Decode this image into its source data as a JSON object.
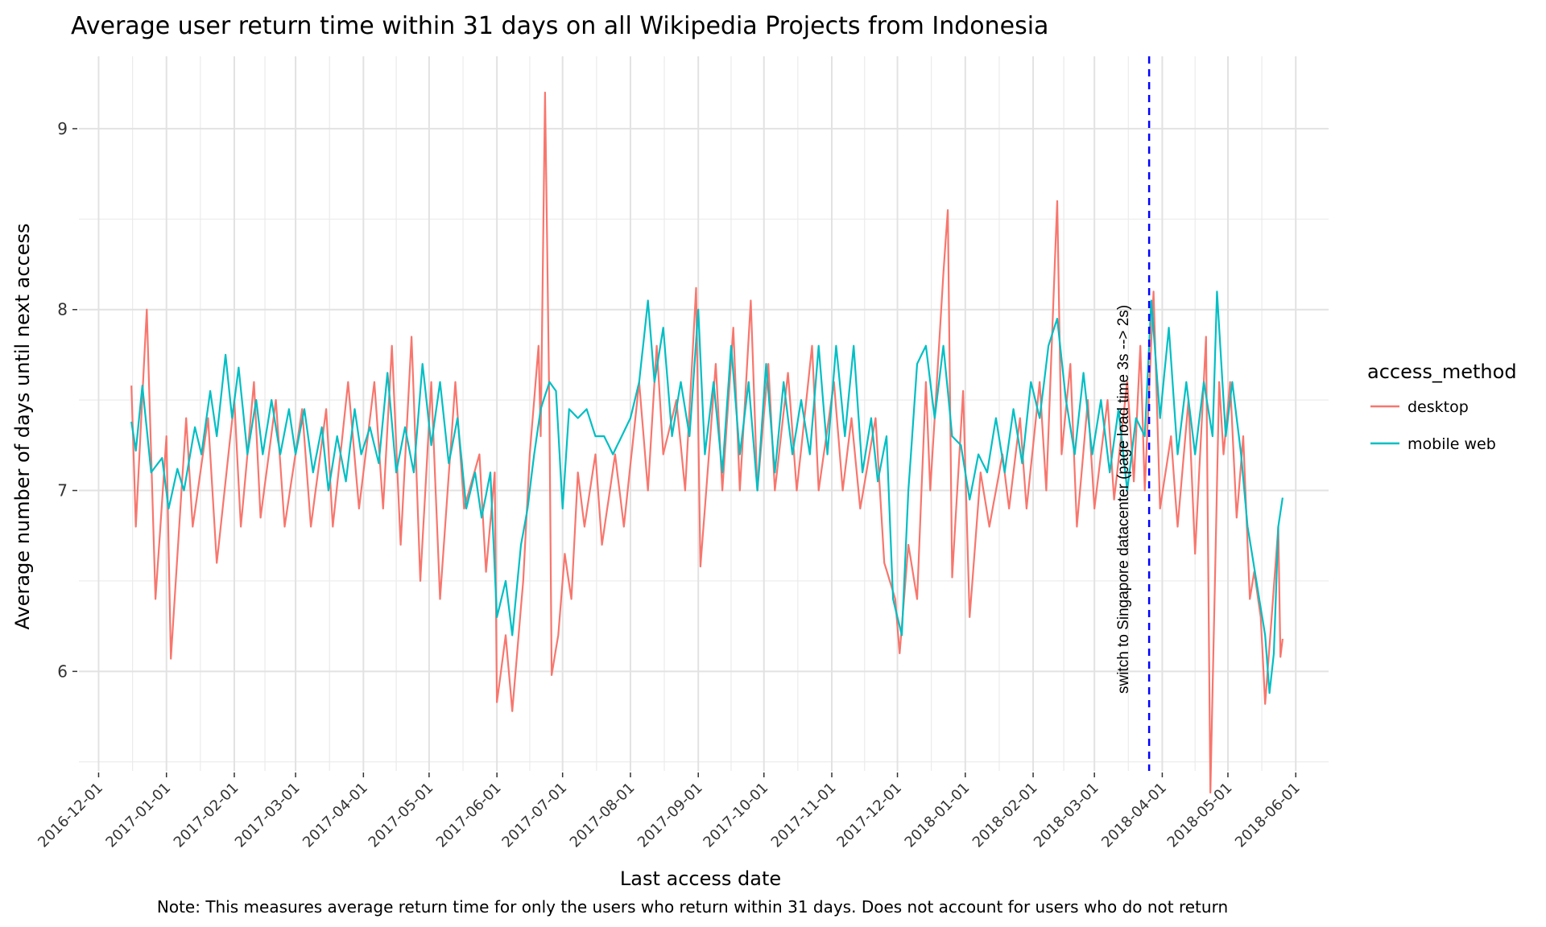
{
  "chart_data": {
    "type": "line",
    "title": "Average user return time within 31 days on all Wikipedia Projects from Indonesia",
    "xlabel": "Last access date",
    "ylabel": "Average number of days until next access",
    "caption": "Note: This measures average return time for only the users who return within 31 days. Does not account for users who do not return",
    "x_range": [
      "2016-11-22",
      "2018-06-16"
    ],
    "x_data_range": [
      "2016-12-16",
      "2018-05-26"
    ],
    "ylim": [
      5.45,
      9.4
    ],
    "y_ticks": [
      6,
      7,
      8,
      9
    ],
    "x_ticks": [
      "2016-12-01",
      "2017-01-01",
      "2017-02-01",
      "2017-03-01",
      "2017-04-01",
      "2017-05-01",
      "2017-06-01",
      "2017-07-01",
      "2017-08-01",
      "2017-09-01",
      "2017-10-01",
      "2017-11-01",
      "2017-12-01",
      "2018-01-01",
      "2018-02-01",
      "2018-03-01",
      "2018-04-01",
      "2018-05-01",
      "2018-06-01"
    ],
    "grid": true,
    "legend": {
      "title": "access_method",
      "position": "right"
    },
    "vline": {
      "x": "2018-03-26",
      "color": "#0000ff",
      "style": "dashed",
      "label": "switch to Singapore datacenter (page load time 3s --> 2s)"
    },
    "series": [
      {
        "name": "desktop",
        "color": "#f8766d",
        "points": [
          [
            "2016-12-16",
            7.58
          ],
          [
            "2016-12-18",
            6.8
          ],
          [
            "2016-12-23",
            8.0
          ],
          [
            "2016-12-27",
            6.4
          ],
          [
            "2017-01-01",
            7.3
          ],
          [
            "2017-01-03",
            6.07
          ],
          [
            "2017-01-10",
            7.4
          ],
          [
            "2017-01-13",
            6.8
          ],
          [
            "2017-01-20",
            7.4
          ],
          [
            "2017-01-24",
            6.6
          ],
          [
            "2017-02-01",
            7.5
          ],
          [
            "2017-02-04",
            6.8
          ],
          [
            "2017-02-10",
            7.6
          ],
          [
            "2017-02-13",
            6.85
          ],
          [
            "2017-02-20",
            7.5
          ],
          [
            "2017-02-24",
            6.8
          ],
          [
            "2017-03-04",
            7.45
          ],
          [
            "2017-03-08",
            6.8
          ],
          [
            "2017-03-15",
            7.45
          ],
          [
            "2017-03-18",
            6.8
          ],
          [
            "2017-03-25",
            7.6
          ],
          [
            "2017-03-30",
            6.9
          ],
          [
            "2017-04-06",
            7.6
          ],
          [
            "2017-04-10",
            6.9
          ],
          [
            "2017-04-14",
            7.8
          ],
          [
            "2017-04-18",
            6.7
          ],
          [
            "2017-04-23",
            7.85
          ],
          [
            "2017-04-27",
            6.5
          ],
          [
            "2017-05-02",
            7.6
          ],
          [
            "2017-05-06",
            6.4
          ],
          [
            "2017-05-13",
            7.6
          ],
          [
            "2017-05-17",
            6.9
          ],
          [
            "2017-05-24",
            7.2
          ],
          [
            "2017-05-27",
            6.55
          ],
          [
            "2017-05-31",
            7.1
          ],
          [
            "2017-06-01",
            5.83
          ],
          [
            "2017-06-05",
            6.2
          ],
          [
            "2017-06-08",
            5.78
          ],
          [
            "2017-06-13",
            6.5
          ],
          [
            "2017-06-16",
            7.2
          ],
          [
            "2017-06-20",
            7.8
          ],
          [
            "2017-06-21",
            7.3
          ],
          [
            "2017-06-23",
            9.2
          ],
          [
            "2017-06-25",
            7.4
          ],
          [
            "2017-06-26",
            5.98
          ],
          [
            "2017-06-29",
            6.2
          ],
          [
            "2017-07-02",
            6.65
          ],
          [
            "2017-07-05",
            6.4
          ],
          [
            "2017-07-08",
            7.1
          ],
          [
            "2017-07-11",
            6.8
          ],
          [
            "2017-07-16",
            7.2
          ],
          [
            "2017-07-19",
            6.7
          ],
          [
            "2017-07-25",
            7.2
          ],
          [
            "2017-07-29",
            6.8
          ],
          [
            "2017-08-05",
            7.6
          ],
          [
            "2017-08-09",
            7.0
          ],
          [
            "2017-08-13",
            7.8
          ],
          [
            "2017-08-16",
            7.2
          ],
          [
            "2017-08-22",
            7.5
          ],
          [
            "2017-08-26",
            7.0
          ],
          [
            "2017-08-31",
            8.12
          ],
          [
            "2017-09-02",
            6.58
          ],
          [
            "2017-09-09",
            7.7
          ],
          [
            "2017-09-12",
            7.0
          ],
          [
            "2017-09-17",
            7.9
          ],
          [
            "2017-09-20",
            7.0
          ],
          [
            "2017-09-25",
            8.05
          ],
          [
            "2017-09-28",
            7.0
          ],
          [
            "2017-10-03",
            7.7
          ],
          [
            "2017-10-06",
            7.0
          ],
          [
            "2017-10-12",
            7.65
          ],
          [
            "2017-10-16",
            7.0
          ],
          [
            "2017-10-23",
            7.8
          ],
          [
            "2017-10-26",
            7.0
          ],
          [
            "2017-11-02",
            7.6
          ],
          [
            "2017-11-06",
            7.0
          ],
          [
            "2017-11-10",
            7.4
          ],
          [
            "2017-11-14",
            6.9
          ],
          [
            "2017-11-21",
            7.4
          ],
          [
            "2017-11-25",
            6.6
          ],
          [
            "2017-11-30",
            6.4
          ],
          [
            "2017-12-02",
            6.1
          ],
          [
            "2017-12-06",
            6.7
          ],
          [
            "2017-12-10",
            6.4
          ],
          [
            "2017-12-14",
            7.6
          ],
          [
            "2017-12-16",
            7.0
          ],
          [
            "2017-12-22",
            8.2
          ],
          [
            "2017-12-24",
            8.55
          ],
          [
            "2017-12-26",
            6.52
          ],
          [
            "2017-12-31",
            7.55
          ],
          [
            "2018-01-03",
            6.3
          ],
          [
            "2018-01-08",
            7.1
          ],
          [
            "2018-01-12",
            6.8
          ],
          [
            "2018-01-18",
            7.2
          ],
          [
            "2018-01-21",
            6.9
          ],
          [
            "2018-01-26",
            7.4
          ],
          [
            "2018-01-29",
            6.9
          ],
          [
            "2018-02-04",
            7.6
          ],
          [
            "2018-02-07",
            7.0
          ],
          [
            "2018-02-12",
            8.6
          ],
          [
            "2018-02-14",
            7.2
          ],
          [
            "2018-02-18",
            7.7
          ],
          [
            "2018-02-21",
            6.8
          ],
          [
            "2018-02-26",
            7.5
          ],
          [
            "2018-03-01",
            6.9
          ],
          [
            "2018-03-07",
            7.5
          ],
          [
            "2018-03-10",
            6.95
          ],
          [
            "2018-03-16",
            7.6
          ],
          [
            "2018-03-19",
            7.05
          ],
          [
            "2018-03-22",
            7.8
          ],
          [
            "2018-03-24",
            7.0
          ],
          [
            "2018-03-28",
            8.1
          ],
          [
            "2018-03-31",
            6.9
          ],
          [
            "2018-04-05",
            7.3
          ],
          [
            "2018-04-08",
            6.8
          ],
          [
            "2018-04-13",
            7.5
          ],
          [
            "2018-04-16",
            6.65
          ],
          [
            "2018-04-21",
            7.85
          ],
          [
            "2018-04-23",
            5.33
          ],
          [
            "2018-04-27",
            7.6
          ],
          [
            "2018-04-29",
            7.2
          ],
          [
            "2018-05-02",
            7.6
          ],
          [
            "2018-05-05",
            6.85
          ],
          [
            "2018-05-08",
            7.3
          ],
          [
            "2018-05-11",
            6.4
          ],
          [
            "2018-05-13",
            6.55
          ],
          [
            "2018-05-16",
            6.3
          ],
          [
            "2018-05-18",
            5.82
          ],
          [
            "2018-05-21",
            6.3
          ],
          [
            "2018-05-24",
            6.8
          ],
          [
            "2018-05-25",
            6.08
          ],
          [
            "2018-05-26",
            6.18
          ]
        ]
      },
      {
        "name": "mobile web",
        "color": "#00bfc4",
        "points": [
          [
            "2016-12-16",
            7.38
          ],
          [
            "2016-12-18",
            7.22
          ],
          [
            "2016-12-21",
            7.58
          ],
          [
            "2016-12-25",
            7.1
          ],
          [
            "2016-12-30",
            7.18
          ],
          [
            "2017-01-02",
            6.9
          ],
          [
            "2017-01-06",
            7.12
          ],
          [
            "2017-01-09",
            7.0
          ],
          [
            "2017-01-14",
            7.35
          ],
          [
            "2017-01-17",
            7.2
          ],
          [
            "2017-01-21",
            7.55
          ],
          [
            "2017-01-24",
            7.3
          ],
          [
            "2017-01-28",
            7.75
          ],
          [
            "2017-01-31",
            7.4
          ],
          [
            "2017-02-03",
            7.68
          ],
          [
            "2017-02-07",
            7.2
          ],
          [
            "2017-02-11",
            7.5
          ],
          [
            "2017-02-14",
            7.2
          ],
          [
            "2017-02-18",
            7.5
          ],
          [
            "2017-02-22",
            7.2
          ],
          [
            "2017-02-26",
            7.45
          ],
          [
            "2017-03-01",
            7.2
          ],
          [
            "2017-03-05",
            7.45
          ],
          [
            "2017-03-09",
            7.1
          ],
          [
            "2017-03-13",
            7.35
          ],
          [
            "2017-03-16",
            7.0
          ],
          [
            "2017-03-20",
            7.3
          ],
          [
            "2017-03-24",
            7.05
          ],
          [
            "2017-03-28",
            7.45
          ],
          [
            "2017-03-31",
            7.2
          ],
          [
            "2017-04-04",
            7.35
          ],
          [
            "2017-04-08",
            7.15
          ],
          [
            "2017-04-12",
            7.65
          ],
          [
            "2017-04-16",
            7.1
          ],
          [
            "2017-04-20",
            7.35
          ],
          [
            "2017-04-24",
            7.1
          ],
          [
            "2017-04-28",
            7.7
          ],
          [
            "2017-05-02",
            7.25
          ],
          [
            "2017-05-06",
            7.6
          ],
          [
            "2017-05-10",
            7.15
          ],
          [
            "2017-05-14",
            7.4
          ],
          [
            "2017-05-18",
            6.9
          ],
          [
            "2017-05-22",
            7.1
          ],
          [
            "2017-05-25",
            6.85
          ],
          [
            "2017-05-29",
            7.1
          ],
          [
            "2017-06-01",
            6.3
          ],
          [
            "2017-06-05",
            6.5
          ],
          [
            "2017-06-08",
            6.2
          ],
          [
            "2017-06-12",
            6.7
          ],
          [
            "2017-06-15",
            6.9
          ],
          [
            "2017-06-18",
            7.2
          ],
          [
            "2017-06-21",
            7.45
          ],
          [
            "2017-06-25",
            7.6
          ],
          [
            "2017-06-28",
            7.55
          ],
          [
            "2017-07-01",
            6.9
          ],
          [
            "2017-07-04",
            7.45
          ],
          [
            "2017-07-08",
            7.4
          ],
          [
            "2017-07-12",
            7.45
          ],
          [
            "2017-07-16",
            7.3
          ],
          [
            "2017-07-20",
            7.3
          ],
          [
            "2017-07-24",
            7.2
          ],
          [
            "2017-07-28",
            7.3
          ],
          [
            "2017-08-01",
            7.4
          ],
          [
            "2017-08-05",
            7.6
          ],
          [
            "2017-08-09",
            8.05
          ],
          [
            "2017-08-12",
            7.6
          ],
          [
            "2017-08-16",
            7.9
          ],
          [
            "2017-08-20",
            7.3
          ],
          [
            "2017-08-24",
            7.6
          ],
          [
            "2017-08-28",
            7.3
          ],
          [
            "2017-09-01",
            8.0
          ],
          [
            "2017-09-04",
            7.2
          ],
          [
            "2017-09-08",
            7.6
          ],
          [
            "2017-09-12",
            7.1
          ],
          [
            "2017-09-16",
            7.8
          ],
          [
            "2017-09-20",
            7.2
          ],
          [
            "2017-09-24",
            7.6
          ],
          [
            "2017-09-28",
            7.0
          ],
          [
            "2017-10-02",
            7.7
          ],
          [
            "2017-10-06",
            7.1
          ],
          [
            "2017-10-10",
            7.6
          ],
          [
            "2017-10-14",
            7.2
          ],
          [
            "2017-10-18",
            7.5
          ],
          [
            "2017-10-22",
            7.2
          ],
          [
            "2017-10-26",
            7.8
          ],
          [
            "2017-10-30",
            7.2
          ],
          [
            "2017-11-03",
            7.8
          ],
          [
            "2017-11-07",
            7.3
          ],
          [
            "2017-11-11",
            7.8
          ],
          [
            "2017-11-15",
            7.1
          ],
          [
            "2017-11-19",
            7.4
          ],
          [
            "2017-11-22",
            7.05
          ],
          [
            "2017-11-26",
            7.3
          ],
          [
            "2017-11-29",
            6.4
          ],
          [
            "2017-12-03",
            6.2
          ],
          [
            "2017-12-06",
            7.0
          ],
          [
            "2017-12-10",
            7.7
          ],
          [
            "2017-12-14",
            7.8
          ],
          [
            "2017-12-18",
            7.4
          ],
          [
            "2017-12-22",
            7.8
          ],
          [
            "2017-12-26",
            7.3
          ],
          [
            "2017-12-30",
            7.25
          ],
          [
            "2018-01-03",
            6.95
          ],
          [
            "2018-01-07",
            7.2
          ],
          [
            "2018-01-11",
            7.1
          ],
          [
            "2018-01-15",
            7.4
          ],
          [
            "2018-01-19",
            7.1
          ],
          [
            "2018-01-23",
            7.45
          ],
          [
            "2018-01-27",
            7.15
          ],
          [
            "2018-01-31",
            7.6
          ],
          [
            "2018-02-04",
            7.4
          ],
          [
            "2018-02-08",
            7.8
          ],
          [
            "2018-02-12",
            7.95
          ],
          [
            "2018-02-16",
            7.5
          ],
          [
            "2018-02-20",
            7.2
          ],
          [
            "2018-02-24",
            7.65
          ],
          [
            "2018-02-28",
            7.2
          ],
          [
            "2018-03-04",
            7.5
          ],
          [
            "2018-03-08",
            7.1
          ],
          [
            "2018-03-12",
            7.45
          ],
          [
            "2018-03-16",
            7.0
          ],
          [
            "2018-03-20",
            7.4
          ],
          [
            "2018-03-24",
            7.3
          ],
          [
            "2018-03-27",
            8.05
          ],
          [
            "2018-03-31",
            7.4
          ],
          [
            "2018-04-04",
            7.9
          ],
          [
            "2018-04-08",
            7.2
          ],
          [
            "2018-04-12",
            7.6
          ],
          [
            "2018-04-16",
            7.2
          ],
          [
            "2018-04-20",
            7.6
          ],
          [
            "2018-04-24",
            7.3
          ],
          [
            "2018-04-26",
            8.1
          ],
          [
            "2018-04-30",
            7.3
          ],
          [
            "2018-05-03",
            7.6
          ],
          [
            "2018-05-07",
            7.2
          ],
          [
            "2018-05-10",
            6.8
          ],
          [
            "2018-05-14",
            6.5
          ],
          [
            "2018-05-18",
            6.2
          ],
          [
            "2018-05-20",
            5.88
          ],
          [
            "2018-05-22",
            6.1
          ],
          [
            "2018-05-24",
            6.8
          ],
          [
            "2018-05-26",
            6.96
          ]
        ]
      }
    ]
  }
}
